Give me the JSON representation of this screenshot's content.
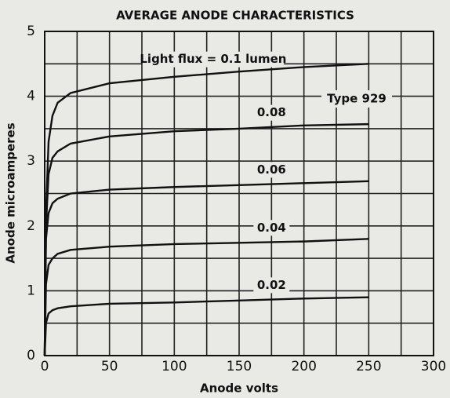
{
  "chart_data": {
    "type": "line",
    "title": "AVERAGE ANODE CHARACTERISTICS",
    "x_label": "Anode volts",
    "y_label": "Anode microamperes",
    "annotation": "Type 929",
    "x": [
      1,
      3,
      6,
      10,
      20,
      50,
      100,
      150,
      200,
      250
    ],
    "series": [
      {
        "name": "Light flux = 0.1 lumen",
        "color": "#111111",
        "values": [
          2.2,
          3.3,
          3.7,
          3.9,
          4.05,
          4.2,
          4.3,
          4.38,
          4.45,
          4.5
        ]
      },
      {
        "name": "0.08",
        "color": "#111111",
        "values": [
          2.0,
          2.8,
          3.05,
          3.15,
          3.27,
          3.38,
          3.46,
          3.5,
          3.55,
          3.57
        ]
      },
      {
        "name": "0.06",
        "color": "#111111",
        "values": [
          1.8,
          2.2,
          2.35,
          2.42,
          2.5,
          2.56,
          2.6,
          2.63,
          2.66,
          2.69
        ]
      },
      {
        "name": "0.04",
        "color": "#111111",
        "values": [
          1.1,
          1.4,
          1.5,
          1.57,
          1.63,
          1.68,
          1.72,
          1.74,
          1.76,
          1.8
        ]
      },
      {
        "name": "0.02",
        "color": "#111111",
        "values": [
          0.5,
          0.65,
          0.7,
          0.73,
          0.76,
          0.8,
          0.82,
          0.85,
          0.88,
          0.9
        ]
      }
    ],
    "xlim": [
      0,
      300
    ],
    "xticks": [
      0,
      50,
      100,
      150,
      200,
      250,
      300
    ],
    "ylim": [
      0,
      5
    ],
    "yticks": [
      0,
      1,
      2,
      3,
      4,
      5
    ],
    "grid": true
  }
}
